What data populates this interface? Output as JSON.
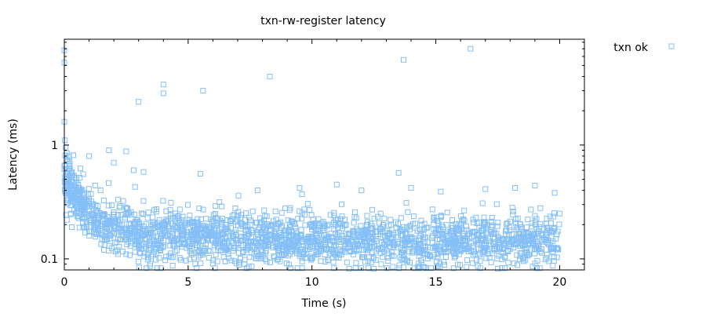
{
  "chart_data": {
    "type": "scatter",
    "title": "txn-rw-register latency",
    "xlabel": "Time (s)",
    "ylabel": "Latency (ms)",
    "xlim": [
      0,
      21
    ],
    "ylim": [
      0.08,
      8.5
    ],
    "yscale": "log",
    "grid": false,
    "legend_position": "top-right",
    "x_ticks": [
      0,
      5,
      10,
      15,
      20
    ],
    "x_tick_labels": [
      "0",
      "5",
      "10",
      "15",
      "20"
    ],
    "y_ticks": [
      0.1,
      1
    ],
    "y_tick_labels": [
      "0.1",
      "1"
    ],
    "series": [
      {
        "name": "txn ok",
        "color": "#84bff7",
        "marker": "square-open",
        "points": [
          [
            0.0,
            6.8
          ],
          [
            0.0,
            5.3
          ],
          [
            0.0,
            1.6
          ],
          [
            0.02,
            1.1
          ],
          [
            0.05,
            0.95
          ],
          [
            0.1,
            0.85
          ],
          [
            0.15,
            0.72
          ],
          [
            0.2,
            0.66
          ],
          [
            0.3,
            0.58
          ],
          [
            0.4,
            0.52
          ],
          [
            0.5,
            0.46
          ],
          [
            0.6,
            0.42
          ],
          [
            0.8,
            0.38
          ],
          [
            1.0,
            0.8
          ],
          [
            1.8,
            0.9
          ],
          [
            2.5,
            0.88
          ],
          [
            2.0,
            0.7
          ],
          [
            2.8,
            0.6
          ],
          [
            3.0,
            2.4
          ],
          [
            4.0,
            3.4
          ],
          [
            4.0,
            2.85
          ],
          [
            5.6,
            3.0
          ],
          [
            8.3,
            4.0
          ],
          [
            13.7,
            5.6
          ],
          [
            16.4,
            7.0
          ],
          [
            13.5,
            0.57
          ],
          [
            5.5,
            0.56
          ],
          [
            3.2,
            0.58
          ],
          [
            9.6,
            0.37
          ],
          [
            9.5,
            0.42
          ],
          [
            11.0,
            0.45
          ],
          [
            14.0,
            0.42
          ],
          [
            17.0,
            0.41
          ],
          [
            19.0,
            0.44
          ],
          [
            9.5,
            0.11
          ],
          [
            9.6,
            0.095
          ],
          [
            11.5,
            0.082
          ],
          [
            12.5,
            0.082
          ],
          [
            17.5,
            0.082
          ],
          [
            19.2,
            0.083
          ],
          [
            6.5,
            0.095
          ],
          [
            2.5,
            0.11
          ],
          [
            0.1,
            0.22
          ],
          [
            0.3,
            0.19
          ],
          [
            1.0,
            0.16
          ],
          [
            1.6,
            0.12
          ],
          [
            3.5,
            0.105
          ],
          [
            14.5,
            0.085
          ],
          [
            19.8,
            0.38
          ],
          [
            20.0,
            0.25
          ],
          [
            15.2,
            0.39
          ],
          [
            7.8,
            0.4
          ],
          [
            12.0,
            0.4
          ],
          [
            18.2,
            0.42
          ]
        ]
      }
    ]
  }
}
